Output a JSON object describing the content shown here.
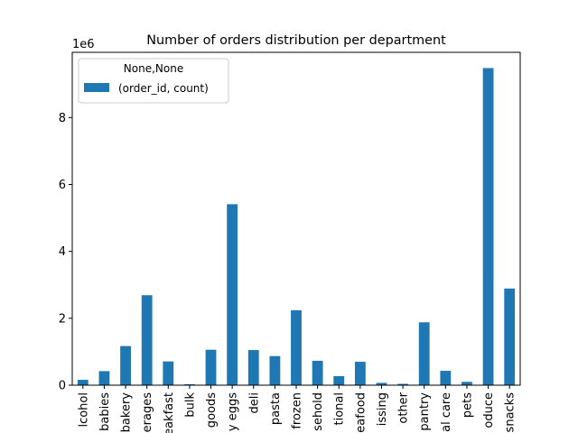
{
  "chart_data": {
    "type": "bar",
    "title": "Number of orders distribution per department",
    "xlabel": "",
    "ylabel": "",
    "y_scale_label": "1e6",
    "ylim": [
      0,
      10
    ],
    "yticks": [
      0,
      2,
      4,
      6,
      8
    ],
    "grid": false,
    "legend": {
      "placement": "top-left",
      "title": "None,None",
      "entries": [
        "(order_id, count)"
      ]
    },
    "categories": [
      "lcohol",
      "babies",
      "bakery",
      "erages",
      "eakfast",
      "bulk",
      "goods",
      "y eggs",
      "deli",
      "pasta",
      "frozen",
      "sehold",
      "tional",
      "eafood",
      "issing",
      "other",
      "pantry",
      "al care",
      "pets",
      "oduce",
      "snacks"
    ],
    "series": [
      {
        "name": "(order_id, count)",
        "color": "#1f77b4",
        "values": [
          0.16,
          0.42,
          1.17,
          2.69,
          0.71,
          0.03,
          1.06,
          5.41,
          1.05,
          0.87,
          2.24,
          0.73,
          0.27,
          0.7,
          0.07,
          0.04,
          1.88,
          0.43,
          0.1,
          9.48,
          2.89
        ]
      }
    ]
  }
}
